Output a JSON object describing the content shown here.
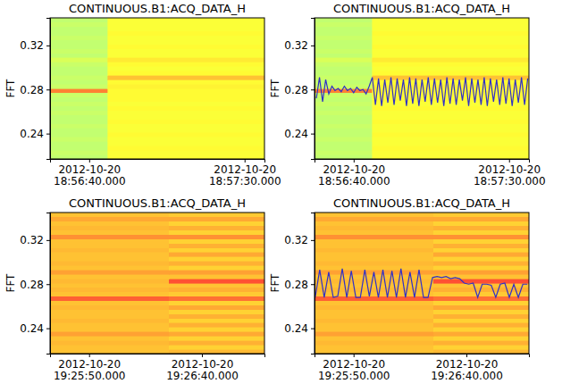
{
  "chart_data": [
    {
      "type": "heatmap",
      "title": "CONTINUOUS.B1:ACQ_DATA_H",
      "y_label": "FFT",
      "xlim": [
        "2012-10-20 18:56:27.400",
        "2012-10-20 18:57:36.400"
      ],
      "xticks": [
        {
          "value": "2012-10-20 18:56:40.000",
          "label": "2012-10-20\n18:56:40.000"
        },
        {
          "value": "2012-10-20 18:57:30.000",
          "label": "2012-10-20\n18:57:30.000"
        }
      ],
      "ylim": [
        0.217,
        0.345
      ],
      "yticks": [
        0.24,
        0.28,
        0.32
      ],
      "x_edges": [
        "2012-10-20 18:56:27.400",
        "2012-10-20 18:56:46.000",
        "2012-10-20 18:57:36.400"
      ],
      "y_edges": [
        0.217,
        0.221,
        0.225,
        0.229,
        0.233,
        0.237,
        0.241,
        0.245,
        0.249,
        0.253,
        0.257,
        0.261,
        0.265,
        0.269,
        0.273,
        0.277,
        0.281,
        0.285,
        0.289,
        0.293,
        0.297,
        0.301,
        0.305,
        0.309,
        0.313,
        0.317,
        0.321,
        0.325,
        0.329,
        0.333,
        0.337,
        0.341,
        0.345
      ],
      "cells": [
        [
          0.55,
          0.62
        ],
        [
          0.56,
          0.62
        ],
        [
          0.55,
          0.63
        ],
        [
          0.55,
          0.62
        ],
        [
          0.56,
          0.62
        ],
        [
          0.55,
          0.63
        ],
        [
          0.55,
          0.62
        ],
        [
          0.56,
          0.62
        ],
        [
          0.55,
          0.63
        ],
        [
          0.55,
          0.62
        ],
        [
          0.56,
          0.62
        ],
        [
          0.55,
          0.63
        ],
        [
          0.56,
          0.62
        ],
        [
          0.55,
          0.63
        ],
        [
          0.56,
          0.63
        ],
        [
          0.78,
          0.63
        ],
        [
          0.56,
          0.64
        ],
        [
          0.55,
          0.63
        ],
        [
          0.56,
          0.7
        ],
        [
          0.55,
          0.63
        ],
        [
          0.55,
          0.62
        ],
        [
          0.56,
          0.63
        ],
        [
          0.58,
          0.65
        ],
        [
          0.55,
          0.62
        ],
        [
          0.56,
          0.62
        ],
        [
          0.55,
          0.63
        ],
        [
          0.55,
          0.62
        ],
        [
          0.56,
          0.62
        ],
        [
          0.55,
          0.63
        ],
        [
          0.55,
          0.62
        ],
        [
          0.56,
          0.62
        ],
        [
          0.55,
          0.62
        ]
      ],
      "color_range": [
        0,
        1
      ]
    },
    {
      "type": "heatmap",
      "title": "CONTINUOUS.B1:ACQ_DATA_H",
      "y_label": "FFT",
      "xlim": [
        "2012-10-20 18:56:27.400",
        "2012-10-20 18:57:36.400"
      ],
      "xticks": [
        {
          "value": "2012-10-20 18:56:40.000",
          "label": "2012-10-20\n18:56:40.000"
        },
        {
          "value": "2012-10-20 18:57:30.000",
          "label": "2012-10-20\n18:57:30.000"
        }
      ],
      "ylim": [
        0.217,
        0.345
      ],
      "yticks": [
        0.24,
        0.28,
        0.32
      ],
      "x_edges": [
        "2012-10-20 18:56:27.400",
        "2012-10-20 18:56:46.000",
        "2012-10-20 18:57:36.400"
      ],
      "y_edges": [
        0.217,
        0.221,
        0.225,
        0.229,
        0.233,
        0.237,
        0.241,
        0.245,
        0.249,
        0.253,
        0.257,
        0.261,
        0.265,
        0.269,
        0.273,
        0.277,
        0.281,
        0.285,
        0.289,
        0.293,
        0.297,
        0.301,
        0.305,
        0.309,
        0.313,
        0.317,
        0.321,
        0.325,
        0.329,
        0.333,
        0.337,
        0.341,
        0.345
      ],
      "cells": [
        [
          0.55,
          0.62
        ],
        [
          0.56,
          0.62
        ],
        [
          0.55,
          0.63
        ],
        [
          0.55,
          0.62
        ],
        [
          0.56,
          0.62
        ],
        [
          0.55,
          0.63
        ],
        [
          0.55,
          0.62
        ],
        [
          0.56,
          0.62
        ],
        [
          0.55,
          0.63
        ],
        [
          0.55,
          0.62
        ],
        [
          0.56,
          0.62
        ],
        [
          0.55,
          0.63
        ],
        [
          0.56,
          0.62
        ],
        [
          0.55,
          0.63
        ],
        [
          0.56,
          0.63
        ],
        [
          0.78,
          0.63
        ],
        [
          0.56,
          0.64
        ],
        [
          0.55,
          0.63
        ],
        [
          0.56,
          0.7
        ],
        [
          0.55,
          0.63
        ],
        [
          0.55,
          0.62
        ],
        [
          0.56,
          0.63
        ],
        [
          0.58,
          0.65
        ],
        [
          0.55,
          0.62
        ],
        [
          0.56,
          0.62
        ],
        [
          0.55,
          0.63
        ],
        [
          0.55,
          0.62
        ],
        [
          0.56,
          0.62
        ],
        [
          0.55,
          0.63
        ],
        [
          0.55,
          0.62
        ],
        [
          0.56,
          0.62
        ],
        [
          0.55,
          0.62
        ]
      ],
      "color_range": [
        0,
        1
      ],
      "series": [
        {
          "type": "line",
          "color": "#3030c8",
          "x": [
            "2012-10-20 18:56:28.000",
            "2012-10-20 18:56:29.000",
            "2012-10-20 18:56:30.000",
            "2012-10-20 18:56:31.000",
            "2012-10-20 18:56:32.000",
            "2012-10-20 18:56:33.000",
            "2012-10-20 18:56:34.000",
            "2012-10-20 18:56:35.000",
            "2012-10-20 18:56:36.000",
            "2012-10-20 18:56:37.000",
            "2012-10-20 18:56:38.000",
            "2012-10-20 18:56:39.000",
            "2012-10-20 18:56:40.000",
            "2012-10-20 18:56:41.000",
            "2012-10-20 18:56:42.000",
            "2012-10-20 18:56:43.000",
            "2012-10-20 18:56:44.000",
            "2012-10-20 18:56:45.000",
            "2012-10-20 18:56:46.000",
            "2012-10-20 18:56:47.000",
            "2012-10-20 18:56:48.000",
            "2012-10-20 18:56:49.000",
            "2012-10-20 18:56:50.000",
            "2012-10-20 18:56:51.000",
            "2012-10-20 18:56:52.000",
            "2012-10-20 18:56:53.000",
            "2012-10-20 18:56:54.000",
            "2012-10-20 18:56:55.000",
            "2012-10-20 18:56:56.000",
            "2012-10-20 18:56:57.000",
            "2012-10-20 18:56:58.000",
            "2012-10-20 18:56:59.000",
            "2012-10-20 18:57:00.000",
            "2012-10-20 18:57:01.000",
            "2012-10-20 18:57:02.000",
            "2012-10-20 18:57:03.000",
            "2012-10-20 18:57:04.000",
            "2012-10-20 18:57:05.000",
            "2012-10-20 18:57:06.000",
            "2012-10-20 18:57:07.000",
            "2012-10-20 18:57:08.000",
            "2012-10-20 18:57:09.000",
            "2012-10-20 18:57:10.000",
            "2012-10-20 18:57:11.000",
            "2012-10-20 18:57:12.000",
            "2012-10-20 18:57:13.000",
            "2012-10-20 18:57:14.000",
            "2012-10-20 18:57:15.000",
            "2012-10-20 18:57:16.000",
            "2012-10-20 18:57:17.000",
            "2012-10-20 18:57:18.000",
            "2012-10-20 18:57:19.000",
            "2012-10-20 18:57:20.000",
            "2012-10-20 18:57:21.000",
            "2012-10-20 18:57:22.000",
            "2012-10-20 18:57:23.000",
            "2012-10-20 18:57:24.000",
            "2012-10-20 18:57:25.000",
            "2012-10-20 18:57:26.000",
            "2012-10-20 18:57:27.000",
            "2012-10-20 18:57:28.000",
            "2012-10-20 18:57:29.000",
            "2012-10-20 18:57:30.000",
            "2012-10-20 18:57:31.000",
            "2012-10-20 18:57:32.000",
            "2012-10-20 18:57:33.000",
            "2012-10-20 18:57:34.000",
            "2012-10-20 18:57:35.000",
            "2012-10-20 18:57:36.000"
          ],
          "values": [
            0.272,
            0.291,
            0.269,
            0.289,
            0.276,
            0.283,
            0.279,
            0.281,
            0.278,
            0.283,
            0.279,
            0.281,
            0.277,
            0.282,
            0.279,
            0.28,
            0.276,
            0.283,
            0.291,
            0.266,
            0.29,
            0.265,
            0.289,
            0.268,
            0.291,
            0.266,
            0.29,
            0.27,
            0.289,
            0.265,
            0.291,
            0.267,
            0.29,
            0.265,
            0.289,
            0.269,
            0.291,
            0.266,
            0.29,
            0.268,
            0.289,
            0.265,
            0.291,
            0.267,
            0.29,
            0.266,
            0.289,
            0.27,
            0.291,
            0.265,
            0.29,
            0.268,
            0.289,
            0.266,
            0.291,
            0.265,
            0.29,
            0.269,
            0.289,
            0.266,
            0.291,
            0.267,
            0.29,
            0.265,
            0.289,
            0.268,
            0.291,
            0.266,
            0.29
          ]
        }
      ]
    },
    {
      "type": "heatmap",
      "title": "CONTINUOUS.B1:ACQ_DATA_H",
      "y_label": "FFT",
      "xlim": [
        "2012-10-20 19:25:32.700",
        "2012-10-20 19:27:07.700"
      ],
      "xticks": [
        {
          "value": "2012-10-20 19:25:50.000",
          "label": "2012-10-20\n19:25:50.000"
        },
        {
          "value": "2012-10-20 19:26:40.000",
          "label": "2012-10-20\n19:26:40.000"
        }
      ],
      "ylim": [
        0.217,
        0.345
      ],
      "yticks": [
        0.24,
        0.28,
        0.32
      ],
      "x_edges": [
        "2012-10-20 19:25:32.700",
        "2012-10-20 19:26:25.400",
        "2012-10-20 19:27:07.700"
      ],
      "y_edges": [
        0.217,
        0.221,
        0.225,
        0.229,
        0.233,
        0.237,
        0.241,
        0.245,
        0.249,
        0.253,
        0.257,
        0.261,
        0.265,
        0.269,
        0.273,
        0.277,
        0.281,
        0.285,
        0.289,
        0.293,
        0.297,
        0.301,
        0.305,
        0.309,
        0.313,
        0.317,
        0.321,
        0.325,
        0.329,
        0.333,
        0.337,
        0.341,
        0.345
      ],
      "cells": [
        [
          0.7,
          0.71
        ],
        [
          0.7,
          0.68
        ],
        [
          0.71,
          0.72
        ],
        [
          0.7,
          0.68
        ],
        [
          0.74,
          0.73
        ],
        [
          0.7,
          0.68
        ],
        [
          0.7,
          0.72
        ],
        [
          0.71,
          0.68
        ],
        [
          0.7,
          0.72
        ],
        [
          0.7,
          0.68
        ],
        [
          0.71,
          0.73
        ],
        [
          0.7,
          0.68
        ],
        [
          0.82,
          0.8
        ],
        [
          0.7,
          0.69
        ],
        [
          0.71,
          0.72
        ],
        [
          0.7,
          0.7
        ],
        [
          0.71,
          0.84
        ],
        [
          0.7,
          0.7
        ],
        [
          0.74,
          0.74
        ],
        [
          0.7,
          0.68
        ],
        [
          0.71,
          0.72
        ],
        [
          0.7,
          0.68
        ],
        [
          0.7,
          0.73
        ],
        [
          0.71,
          0.68
        ],
        [
          0.7,
          0.72
        ],
        [
          0.7,
          0.68
        ],
        [
          0.76,
          0.76
        ],
        [
          0.7,
          0.68
        ],
        [
          0.71,
          0.72
        ],
        [
          0.7,
          0.68
        ],
        [
          0.73,
          0.73
        ],
        [
          0.7,
          0.69
        ]
      ],
      "color_range": [
        0,
        1
      ]
    },
    {
      "type": "heatmap",
      "title": "CONTINUOUS.B1:ACQ_DATA_H",
      "y_label": "FFT",
      "xlim": [
        "2012-10-20 19:25:32.700",
        "2012-10-20 19:27:07.700"
      ],
      "xticks": [
        {
          "value": "2012-10-20 19:25:50.000",
          "label": "2012-10-20\n19:25:50.000"
        },
        {
          "value": "2012-10-20 19:26:40.000",
          "label": "2012-10-20\n19:26:40.000"
        }
      ],
      "ylim": [
        0.217,
        0.345
      ],
      "yticks": [
        0.24,
        0.28,
        0.32
      ],
      "x_edges": [
        "2012-10-20 19:25:32.700",
        "2012-10-20 19:26:25.400",
        "2012-10-20 19:27:07.700"
      ],
      "y_edges": [
        0.217,
        0.221,
        0.225,
        0.229,
        0.233,
        0.237,
        0.241,
        0.245,
        0.249,
        0.253,
        0.257,
        0.261,
        0.265,
        0.269,
        0.273,
        0.277,
        0.281,
        0.285,
        0.289,
        0.293,
        0.297,
        0.301,
        0.305,
        0.309,
        0.313,
        0.317,
        0.321,
        0.325,
        0.329,
        0.333,
        0.337,
        0.341,
        0.345
      ],
      "cells": [
        [
          0.7,
          0.71
        ],
        [
          0.7,
          0.68
        ],
        [
          0.71,
          0.72
        ],
        [
          0.7,
          0.68
        ],
        [
          0.74,
          0.73
        ],
        [
          0.7,
          0.68
        ],
        [
          0.7,
          0.72
        ],
        [
          0.71,
          0.68
        ],
        [
          0.7,
          0.72
        ],
        [
          0.7,
          0.68
        ],
        [
          0.71,
          0.73
        ],
        [
          0.7,
          0.68
        ],
        [
          0.82,
          0.8
        ],
        [
          0.7,
          0.69
        ],
        [
          0.71,
          0.72
        ],
        [
          0.7,
          0.7
        ],
        [
          0.71,
          0.84
        ],
        [
          0.7,
          0.7
        ],
        [
          0.74,
          0.74
        ],
        [
          0.7,
          0.68
        ],
        [
          0.71,
          0.72
        ],
        [
          0.7,
          0.68
        ],
        [
          0.7,
          0.73
        ],
        [
          0.71,
          0.68
        ],
        [
          0.7,
          0.72
        ],
        [
          0.7,
          0.68
        ],
        [
          0.76,
          0.76
        ],
        [
          0.7,
          0.68
        ],
        [
          0.71,
          0.72
        ],
        [
          0.7,
          0.68
        ],
        [
          0.73,
          0.73
        ],
        [
          0.7,
          0.69
        ]
      ],
      "color_range": [
        0,
        1
      ],
      "series": [
        {
          "type": "line",
          "color": "#3030c8",
          "x": [
            "2012-10-20 19:25:33.000",
            "2012-10-20 19:25:35.000",
            "2012-10-20 19:25:37.000",
            "2012-10-20 19:25:39.000",
            "2012-10-20 19:25:41.000",
            "2012-10-20 19:25:43.000",
            "2012-10-20 19:25:45.000",
            "2012-10-20 19:25:47.000",
            "2012-10-20 19:25:49.000",
            "2012-10-20 19:25:51.000",
            "2012-10-20 19:25:53.000",
            "2012-10-20 19:25:55.000",
            "2012-10-20 19:25:57.000",
            "2012-10-20 19:25:59.000",
            "2012-10-20 19:26:01.000",
            "2012-10-20 19:26:03.000",
            "2012-10-20 19:26:05.000",
            "2012-10-20 19:26:07.000",
            "2012-10-20 19:26:09.000",
            "2012-10-20 19:26:11.000",
            "2012-10-20 19:26:13.000",
            "2012-10-20 19:26:15.000",
            "2012-10-20 19:26:17.000",
            "2012-10-20 19:26:19.000",
            "2012-10-20 19:26:21.000",
            "2012-10-20 19:26:23.000",
            "2012-10-20 19:26:25.000",
            "2012-10-20 19:26:27.000",
            "2012-10-20 19:26:29.000",
            "2012-10-20 19:26:31.000",
            "2012-10-20 19:26:33.000",
            "2012-10-20 19:26:35.000",
            "2012-10-20 19:26:37.000",
            "2012-10-20 19:26:39.000",
            "2012-10-20 19:26:41.000",
            "2012-10-20 19:26:43.000",
            "2012-10-20 19:26:45.000",
            "2012-10-20 19:26:47.000",
            "2012-10-20 19:26:49.000",
            "2012-10-20 19:26:51.000",
            "2012-10-20 19:26:53.000",
            "2012-10-20 19:26:55.000",
            "2012-10-20 19:26:57.000",
            "2012-10-20 19:26:59.000",
            "2012-10-20 19:27:01.000",
            "2012-10-20 19:27:03.000",
            "2012-10-20 19:27:05.000",
            "2012-10-20 19:27:07.000"
          ],
          "values": [
            0.268,
            0.293,
            0.268,
            0.291,
            0.268,
            0.269,
            0.294,
            0.268,
            0.292,
            0.268,
            0.268,
            0.293,
            0.269,
            0.291,
            0.268,
            0.293,
            0.268,
            0.292,
            0.268,
            0.294,
            0.268,
            0.291,
            0.268,
            0.293,
            0.268,
            0.268,
            0.286,
            0.287,
            0.286,
            0.287,
            0.285,
            0.286,
            0.285,
            0.281,
            0.28,
            0.281,
            0.268,
            0.28,
            0.28,
            0.279,
            0.268,
            0.28,
            0.281,
            0.268,
            0.28,
            0.268,
            0.28,
            0.28
          ]
        }
      ]
    }
  ]
}
